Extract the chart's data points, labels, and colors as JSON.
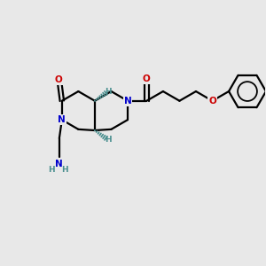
{
  "bg_color": "#e8e8e8",
  "bond_color": "#000000",
  "N_color": "#0000cd",
  "O_color": "#cc0000",
  "H_stereo_color": "#4a8f8f",
  "lw": 1.6,
  "figsize": [
    3.0,
    3.0
  ],
  "dpi": 100,
  "xlim": [
    0,
    10
  ],
  "ylim": [
    0,
    10
  ],
  "font_size": 7.5,
  "font_size_H": 6.5,
  "b": 0.72
}
